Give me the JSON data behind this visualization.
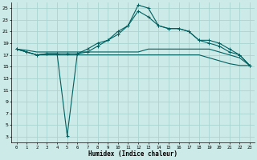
{
  "xlabel": "Humidex (Indice chaleur)",
  "background_color": "#cceae7",
  "grid_color": "#aad4d0",
  "line_color": "#006060",
  "xlim": [
    -0.5,
    23.5
  ],
  "ylim": [
    2,
    26
  ],
  "xtick_labels": [
    "0",
    "1",
    "2",
    "3",
    "4",
    "5",
    "6",
    "7",
    "8",
    "9",
    "10",
    "11",
    "12",
    "13",
    "14",
    "15",
    "16",
    "17",
    "18",
    "19",
    "20",
    "21",
    "22",
    "23"
  ],
  "ytick_values": [
    3,
    5,
    7,
    9,
    11,
    13,
    15,
    17,
    19,
    21,
    23,
    25
  ],
  "series": {
    "line1_marked": {
      "x": [
        0,
        1,
        2,
        3,
        4,
        5,
        6,
        7,
        8,
        9,
        10,
        11,
        12,
        13,
        14,
        15,
        16,
        17,
        18,
        19,
        20,
        21,
        22,
        23
      ],
      "y": [
        18,
        17.5,
        17,
        17.2,
        17.2,
        3.2,
        17.2,
        18,
        19,
        19.5,
        20.5,
        22,
        25.5,
        25,
        22,
        21.5,
        21.5,
        21,
        19.5,
        19,
        18.5,
        17.5,
        17,
        15.2
      ]
    },
    "line2_marked": {
      "x": [
        0,
        1,
        2,
        3,
        4,
        5,
        6,
        7,
        8,
        9,
        10,
        11,
        12,
        13,
        14,
        15,
        16,
        17,
        18,
        19,
        20,
        21,
        22,
        23
      ],
      "y": [
        18,
        17.5,
        17,
        17.2,
        17.2,
        17.2,
        17.2,
        17.5,
        18.5,
        19.5,
        21,
        22,
        24.5,
        23.5,
        22,
        21.5,
        21.5,
        21,
        19.5,
        19.5,
        19,
        18,
        17,
        15.2
      ]
    },
    "line3_flat": {
      "x": [
        0,
        1,
        2,
        3,
        4,
        5,
        6,
        7,
        8,
        9,
        10,
        11,
        12,
        13,
        14,
        15,
        16,
        17,
        18,
        19,
        20,
        21,
        22,
        23
      ],
      "y": [
        18,
        17.8,
        17.5,
        17.5,
        17.5,
        17.5,
        17.5,
        17.5,
        17.5,
        17.5,
        17.5,
        17.5,
        17.5,
        18,
        18,
        18,
        18,
        18,
        18,
        18,
        17.5,
        17,
        16.5,
        15.2
      ]
    },
    "line4_flat": {
      "x": [
        0,
        1,
        2,
        3,
        4,
        5,
        6,
        7,
        8,
        9,
        10,
        11,
        12,
        13,
        14,
        15,
        16,
        17,
        18,
        19,
        20,
        21,
        22,
        23
      ],
      "y": [
        18,
        17.5,
        17,
        17,
        17,
        17,
        17,
        17,
        17,
        17,
        17,
        17,
        17,
        17,
        17,
        17,
        17,
        17,
        17,
        16.5,
        16,
        15.5,
        15.2,
        15.2
      ]
    }
  }
}
